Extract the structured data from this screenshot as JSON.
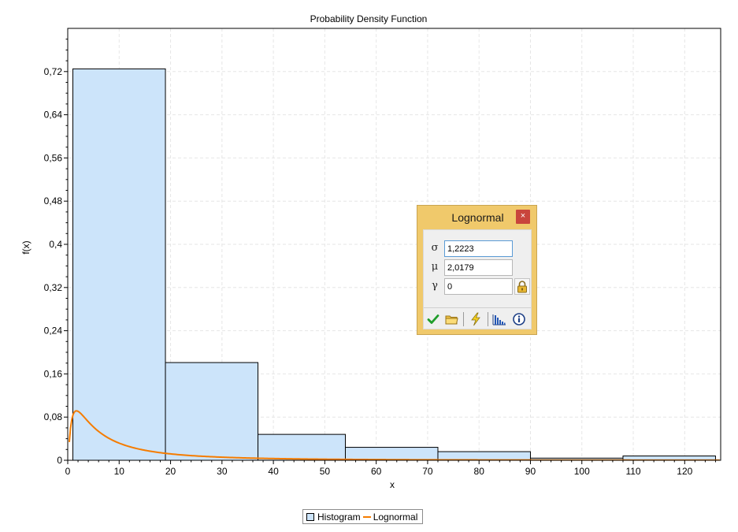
{
  "chart_data": {
    "type": "bar",
    "title": "Probability Density Function",
    "xlabel": "x",
    "ylabel": "f(x)",
    "xlim": [
      0,
      127
    ],
    "ylim": [
      0,
      0.8
    ],
    "x_ticks": [
      "0",
      "10",
      "20",
      "30",
      "40",
      "50",
      "60",
      "70",
      "80",
      "90",
      "100",
      "110",
      "120"
    ],
    "y_ticks": [
      "0",
      "0,08",
      "0,16",
      "0,24",
      "0,32",
      "0,4",
      "0,48",
      "0,56",
      "0,64",
      "0,72"
    ],
    "grid": true,
    "legend_position": "bottom-center",
    "series": [
      {
        "name": "Histogram",
        "type": "histogram",
        "bins": [
          {
            "x0": 1,
            "x1": 19,
            "value": 0.725
          },
          {
            "x0": 19,
            "x1": 37,
            "value": 0.181
          },
          {
            "x0": 37,
            "x1": 54,
            "value": 0.048
          },
          {
            "x0": 54,
            "x1": 72,
            "value": 0.024
          },
          {
            "x0": 72,
            "x1": 90,
            "value": 0.016
          },
          {
            "x0": 90,
            "x1": 108,
            "value": 0.004
          },
          {
            "x0": 108,
            "x1": 126,
            "value": 0.008
          }
        ]
      },
      {
        "name": "Lognormal",
        "type": "line",
        "distribution": {
          "sigma": 1.2223,
          "mu": 2.0179,
          "gamma": 0
        }
      }
    ]
  },
  "legend": {
    "histogram_label": "Histogram",
    "lognormal_label": "Lognormal"
  },
  "colors": {
    "bar_fill": "#cce4fa",
    "bar_stroke": "#000000",
    "curve": "#f57c00",
    "grid": "#e6e6e6",
    "panel_bg": "#f0c96b"
  },
  "panel": {
    "title": "Lognormal",
    "close_label": "×",
    "params": [
      {
        "symbol": "σ",
        "value": "1,2223"
      },
      {
        "symbol": "μ",
        "value": "2,0179"
      },
      {
        "symbol": "γ",
        "value": "0"
      }
    ],
    "toolbar_icons": [
      "check-icon",
      "folder-icon",
      "lightning-icon",
      "histogram-icon",
      "info-icon"
    ]
  }
}
